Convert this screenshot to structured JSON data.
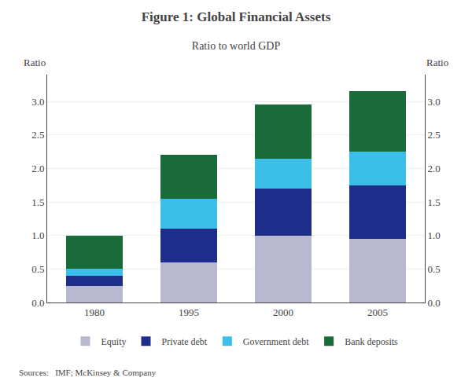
{
  "chart_data": {
    "type": "bar",
    "stacked": true,
    "title": "Figure 1: Global Financial Assets",
    "subtitle": "Ratio to world GDP",
    "ylabel": "Ratio",
    "y2label": "Ratio",
    "annotations": [
      "Sources:   IMF; McKinsey & Company"
    ],
    "categories": [
      "1980",
      "1995",
      "2000",
      "2005"
    ],
    "series": [
      {
        "name": "Equity",
        "color": "#b8b8d0",
        "values": [
          0.25,
          0.6,
          1.0,
          0.95
        ]
      },
      {
        "name": "Private debt",
        "color": "#1e2d8a",
        "values": [
          0.15,
          0.5,
          0.7,
          0.8
        ]
      },
      {
        "name": "Government debt",
        "color": "#3bbfe8",
        "values": [
          0.1,
          0.45,
          0.45,
          0.5
        ]
      },
      {
        "name": "Bank deposits",
        "color": "#1a6b3a",
        "values": [
          0.5,
          0.65,
          0.8,
          0.9
        ]
      }
    ],
    "ylim": [
      0.0,
      3.4
    ],
    "yticks": [
      {
        "value": 0,
        "label": "0.0"
      },
      0.5,
      {
        "value": 1,
        "label": "1.0"
      },
      1.5,
      {
        "value": 2,
        "label": "2.0"
      },
      2.5,
      {
        "value": 3,
        "label": "3.0"
      }
    ],
    "y2lim": [
      0.0,
      3.4
    ],
    "y2ticks": [
      {
        "value": 0,
        "label": "0.0"
      },
      0.5,
      {
        "value": 1,
        "label": "1.0"
      },
      1.5,
      {
        "value": 2,
        "label": "2.0"
      },
      2.5,
      {
        "value": 3,
        "label": "3.0"
      }
    ],
    "grid": true,
    "legend": "bottom"
  }
}
